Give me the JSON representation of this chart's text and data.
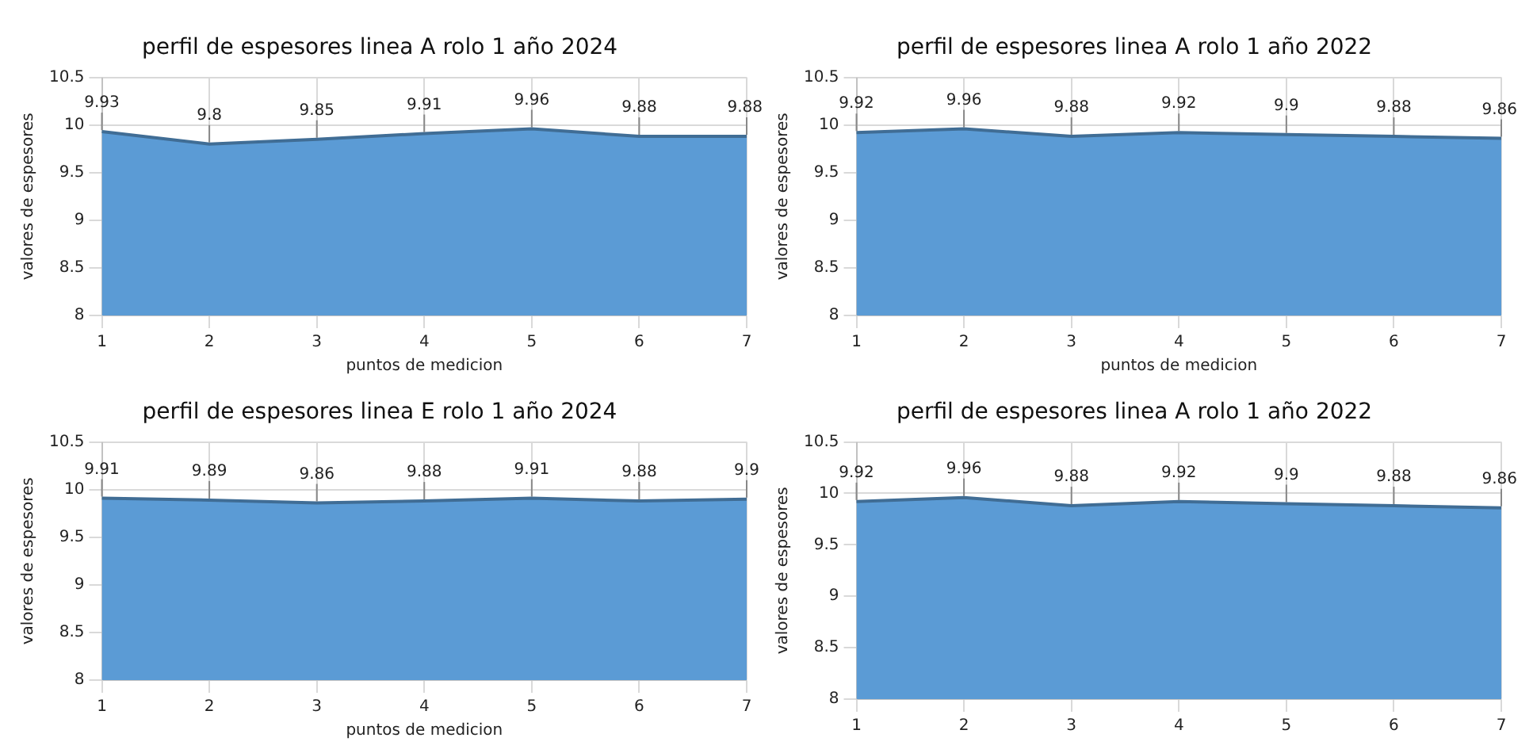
{
  "chart_data": [
    {
      "type": "area",
      "title": "perfil de espesores linea A rolo 1 año 2024",
      "xlabel": "puntos de medicion",
      "ylabel": "valores de espesores",
      "categories": [
        "1",
        "2",
        "3",
        "4",
        "5",
        "6",
        "7"
      ],
      "series": [
        {
          "color": "#5b9bd5",
          "values": [
            9.93,
            9.8,
            9.85,
            9.91,
            9.96,
            9.88,
            9.88
          ]
        }
      ],
      "ylim": [
        8,
        10.5
      ],
      "yticks": [
        8,
        8.5,
        9,
        9.5,
        10,
        10.5
      ],
      "grid": true,
      "data_labels": true
    },
    {
      "type": "area",
      "title": "perfil de espesores linea A rolo 1 año 2022",
      "xlabel": "puntos de medicion",
      "ylabel": "valores de espesores",
      "categories": [
        "1",
        "2",
        "3",
        "4",
        "5",
        "6",
        "7"
      ],
      "series": [
        {
          "color": "#5b9bd5",
          "values": [
            9.92,
            9.96,
            9.88,
            9.92,
            9.9,
            9.88,
            9.86
          ]
        }
      ],
      "ylim": [
        8,
        10.5
      ],
      "yticks": [
        8,
        8.5,
        9,
        9.5,
        10,
        10.5
      ],
      "grid": true,
      "data_labels": true
    },
    {
      "type": "area",
      "title": "perfil de espesores linea E rolo 1 año 2024",
      "xlabel": "puntos de medicion",
      "ylabel": "valores de espesores",
      "categories": [
        "1",
        "2",
        "3",
        "4",
        "5",
        "6",
        "7"
      ],
      "series": [
        {
          "color": "#5b9bd5",
          "values": [
            9.91,
            9.89,
            9.86,
            9.88,
            9.91,
            9.88,
            9.9
          ]
        }
      ],
      "ylim": [
        8,
        10.5
      ],
      "yticks": [
        8,
        8.5,
        9,
        9.5,
        10,
        10.5
      ],
      "grid": true,
      "data_labels": true
    },
    {
      "type": "area",
      "title": "perfil de espesores linea A rolo 1 año 2022",
      "ylabel": "valores de espesores",
      "categories": [
        "1",
        "2",
        "3",
        "4",
        "5",
        "6",
        "7"
      ],
      "series": [
        {
          "color": "#5b9bd5",
          "values": [
            9.92,
            9.96,
            9.88,
            9.92,
            9.9,
            9.88,
            9.86
          ]
        }
      ],
      "ylim": [
        8,
        10.5
      ],
      "yticks": [
        8,
        8.5,
        9,
        9.5,
        10,
        10.5
      ],
      "grid": true,
      "data_labels": true
    }
  ]
}
